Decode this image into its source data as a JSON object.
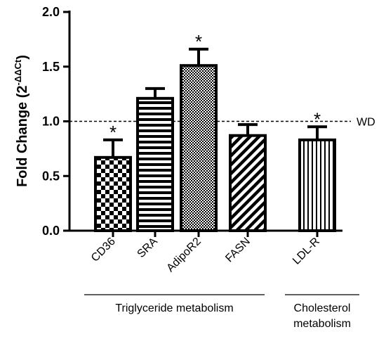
{
  "chart_data": {
    "type": "bar",
    "categories": [
      "CD36",
      "SRA",
      "AdipoR2",
      "FASN",
      "LDL-R"
    ],
    "values": [
      0.67,
      1.21,
      1.51,
      0.87,
      0.83
    ],
    "errors": [
      0.16,
      0.09,
      0.15,
      0.1,
      0.12
    ],
    "significant": [
      true,
      false,
      true,
      false,
      true
    ],
    "significance_symbol": "*",
    "patterns": [
      "checker",
      "horizontal-stripes",
      "fine-checker",
      "diagonal-stripes",
      "vertical-stripes"
    ],
    "ylabel_main": "Fold Change (2",
    "ylabel_sup": "-ΔΔCt",
    "ylabel_close": ")",
    "ylim": [
      0,
      2.0
    ],
    "yticks": [
      "0.0",
      "0.5",
      "1.0",
      "1.5",
      "2.0"
    ],
    "reference_line": {
      "value": 1.0,
      "label": "WD",
      "style": "dashed"
    },
    "groups": [
      {
        "label_lines": [
          "Triglyceride metabolism"
        ],
        "members": [
          0,
          1,
          2,
          3
        ]
      },
      {
        "label_lines": [
          "Cholesterol",
          "metabolism"
        ],
        "members": [
          4
        ]
      }
    ],
    "colors": {
      "ink": "#000000",
      "background": "#ffffff"
    }
  }
}
